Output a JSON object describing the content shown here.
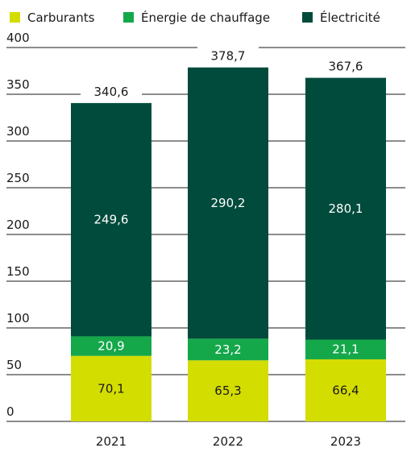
{
  "chart_data": {
    "type": "bar",
    "stacked": true,
    "categories": [
      "2021",
      "2022",
      "2023"
    ],
    "series": [
      {
        "name": "Carburants",
        "values": [
          70.1,
          65.3,
          66.4
        ],
        "color": "#d4dd00",
        "label_color": "#1a1a1a"
      },
      {
        "name": "Énergie de chauffage",
        "values": [
          20.9,
          23.2,
          21.1
        ],
        "color": "#14a84a",
        "label_color": "#ffffff"
      },
      {
        "name": "Électricité",
        "values": [
          249.6,
          290.2,
          280.1
        ],
        "color": "#004b3c",
        "label_color": "#ffffff"
      }
    ],
    "value_labels": {
      "Carburants": [
        "70,1",
        "65,3",
        "66,4"
      ],
      "Énergie de chauffage": [
        "20,9",
        "23,2",
        "21,1"
      ],
      "Électricité": [
        "249,6",
        "290,2",
        "280,1"
      ]
    },
    "totals": [
      340.6,
      378.7,
      367.6
    ],
    "total_labels": [
      "340,6",
      "378,7",
      "367,6"
    ],
    "ylim": [
      0,
      400
    ],
    "yticks": [
      0,
      50,
      100,
      150,
      200,
      250,
      300,
      350,
      400
    ],
    "grid": true,
    "legend_position": "top"
  }
}
